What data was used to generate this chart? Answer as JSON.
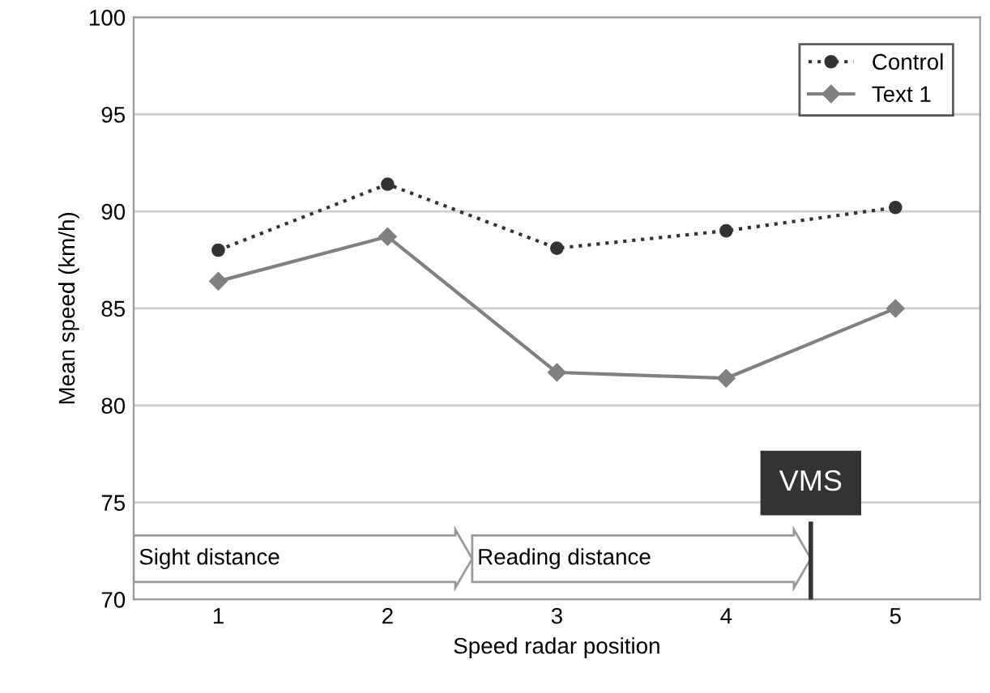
{
  "chart_data": {
    "type": "line",
    "xlabel": "Speed radar position",
    "ylabel": "Mean speed (km/h)",
    "x": [
      1,
      2,
      3,
      4,
      5
    ],
    "xlim": [
      0.5,
      5.5
    ],
    "xticks": [
      1,
      2,
      3,
      4,
      5
    ],
    "ylim": [
      70,
      100
    ],
    "yticks": [
      70,
      75,
      80,
      85,
      90,
      95,
      100
    ],
    "grid": "y",
    "legend": "top right",
    "series": [
      {
        "name": "Control",
        "color": "#333333",
        "marker": "circle",
        "line_style": "dotted",
        "values": [
          88.0,
          91.4,
          88.1,
          89.0,
          90.2
        ]
      },
      {
        "name": "Text 1",
        "color": "#808080",
        "marker": "diamond",
        "line_style": "solid",
        "values": [
          86.4,
          88.7,
          81.7,
          81.4,
          85.0
        ]
      }
    ],
    "ref_lines": [
      {
        "axis": "x",
        "value": 4.5,
        "label": "VMS",
        "color": "#333333"
      }
    ],
    "annotations": [
      "Sight distance",
      "Reading distance"
    ]
  }
}
